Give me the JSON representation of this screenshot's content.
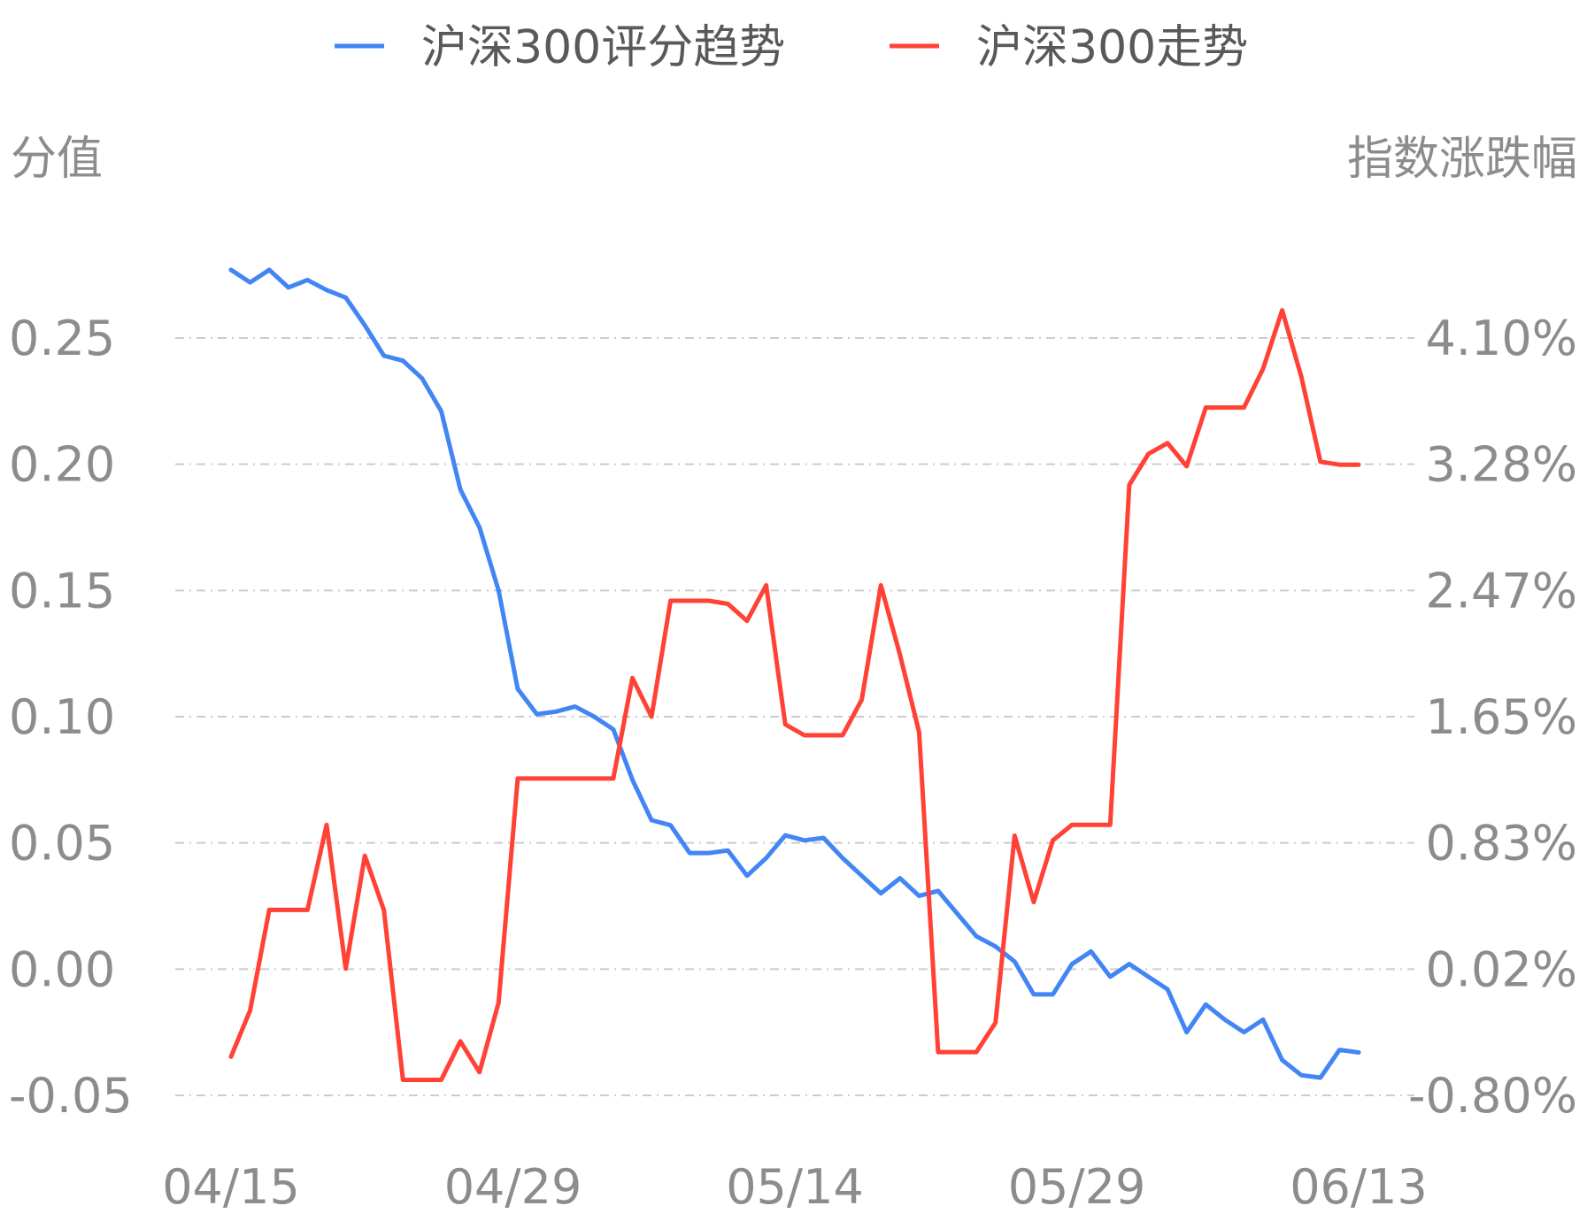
{
  "chart_data": {
    "type": "line",
    "legend": {
      "position": "top-center"
    },
    "grid": true,
    "x_tick_labels": [
      "04/15",
      "04/29",
      "05/14",
      "05/29",
      "06/13"
    ],
    "left_axis": {
      "title": "分值",
      "ylim": [
        -0.05,
        0.25
      ],
      "tick_labels": [
        "-0.05",
        "0.00",
        "0.05",
        "0.10",
        "0.15",
        "0.20",
        "0.25"
      ]
    },
    "right_axis": {
      "title": "指数涨跌幅",
      "ylim": [
        -0.8,
        4.1
      ],
      "tick_labels": [
        "-0.80%",
        "0.02%",
        "0.83%",
        "1.65%",
        "2.47%",
        "3.28%",
        "4.10%"
      ]
    },
    "series": [
      {
        "name": "沪深300评分趋势",
        "axis": "left",
        "color": "#4285f4",
        "values": [
          0.277,
          0.272,
          0.277,
          0.27,
          0.273,
          0.269,
          0.266,
          0.255,
          0.243,
          0.241,
          0.234,
          0.221,
          0.19,
          0.175,
          0.15,
          0.111,
          0.101,
          0.102,
          0.104,
          0.1,
          0.095,
          0.075,
          0.059,
          0.057,
          0.046,
          0.046,
          0.047,
          0.037,
          0.044,
          0.053,
          0.051,
          0.052,
          0.044,
          0.037,
          0.03,
          0.036,
          0.029,
          0.031,
          0.022,
          0.013,
          0.009,
          0.003,
          -0.01,
          -0.01,
          0.002,
          0.007,
          -0.003,
          0.002,
          -0.003,
          -0.008,
          -0.025,
          -0.014,
          -0.02,
          -0.025,
          -0.02,
          -0.036,
          -0.042,
          -0.043,
          -0.032,
          -0.033
        ]
      },
      {
        "name": "沪深300走势",
        "axis": "right",
        "color": "#ff4136",
        "values": [
          -0.55,
          -0.25,
          0.4,
          0.4,
          0.4,
          0.95,
          0.02,
          0.75,
          0.4,
          -0.7,
          -0.7,
          -0.7,
          -0.45,
          -0.65,
          -0.2,
          1.25,
          1.25,
          1.25,
          1.25,
          1.25,
          1.25,
          1.9,
          1.65,
          2.4,
          2.4,
          2.4,
          2.38,
          2.27,
          2.5,
          1.6,
          1.53,
          1.53,
          1.53,
          1.76,
          2.5,
          2.05,
          1.55,
          -0.52,
          -0.52,
          -0.52,
          -0.33,
          0.88,
          0.45,
          0.85,
          0.95,
          0.95,
          0.95,
          3.15,
          3.35,
          3.42,
          3.27,
          3.65,
          3.65,
          3.65,
          3.9,
          4.28,
          3.85,
          3.3,
          3.28,
          3.28
        ]
      }
    ]
  }
}
